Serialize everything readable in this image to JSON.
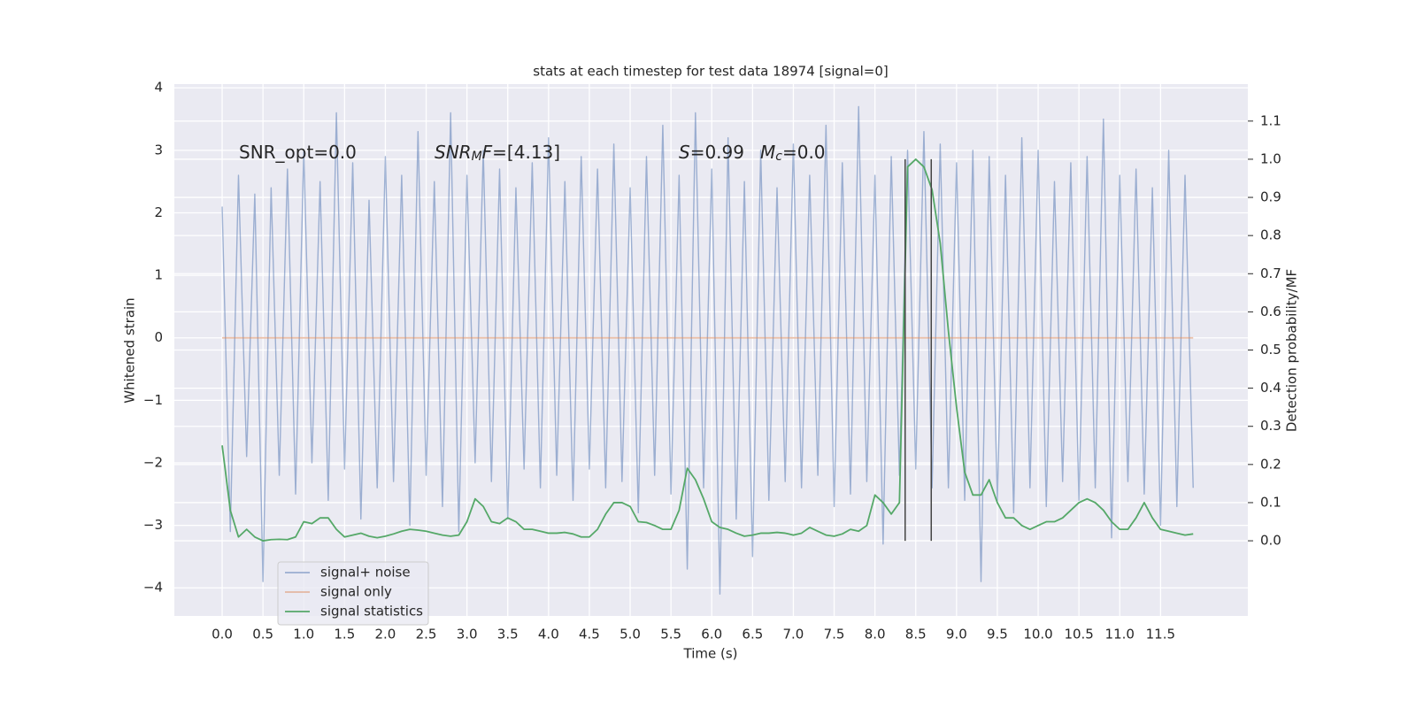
{
  "chart_data": {
    "type": "line",
    "title": "stats at each timestep for test data 18974 [signal=0]",
    "xlabel": "Time (s)",
    "ylabel": "Whitened strain",
    "y2label": "Detection probability/MF",
    "annotations": [
      [
        {
          "t": "SNR_opt=0.0"
        }
      ],
      [
        {
          "t": "SNR",
          "style": "italic"
        },
        {
          "t": "M",
          "style": "italic-sub"
        },
        {
          "t": "F",
          "style": "italic"
        },
        {
          "t": "=[4.13]"
        }
      ],
      [
        {
          "t": "S",
          "style": "italic"
        },
        {
          "t": "=0.99"
        }
      ],
      [
        {
          "t": "M",
          "style": "italic"
        },
        {
          "t": "c",
          "style": "italic-sub"
        },
        {
          "t": "=0.0"
        }
      ]
    ],
    "x": [
      0,
      0.1,
      0.2,
      0.3,
      0.4,
      0.5,
      0.6,
      0.7,
      0.8,
      0.9,
      1,
      1.1,
      1.2,
      1.3,
      1.4,
      1.5,
      1.6,
      1.7,
      1.8,
      1.9,
      2,
      2.1,
      2.2,
      2.3,
      2.4,
      2.5,
      2.6,
      2.7,
      2.8,
      2.9,
      3,
      3.1,
      3.2,
      3.3,
      3.4,
      3.5,
      3.6,
      3.7,
      3.8,
      3.9,
      4,
      4.1,
      4.2,
      4.3,
      4.4,
      4.5,
      4.6,
      4.7,
      4.8,
      4.9,
      5,
      5.1,
      5.2,
      5.3,
      5.4,
      5.5,
      5.6,
      5.7,
      5.8,
      5.9,
      6,
      6.1,
      6.2,
      6.3,
      6.4,
      6.5,
      6.6,
      6.7,
      6.8,
      6.9,
      7,
      7.1,
      7.2,
      7.3,
      7.4,
      7.5,
      7.6,
      7.7,
      7.8,
      7.9,
      8,
      8.1,
      8.2,
      8.3,
      8.4,
      8.5,
      8.6,
      8.7,
      8.8,
      8.9,
      9,
      9.1,
      9.2,
      9.3,
      9.4,
      9.5,
      9.6,
      9.7,
      9.8,
      9.9,
      10,
      10.1,
      10.2,
      10.3,
      10.4,
      10.5,
      10.6,
      10.7,
      10.8,
      10.9,
      11,
      11.1,
      11.2,
      11.3,
      11.4,
      11.5,
      11.6,
      11.7,
      11.8,
      11.9
    ],
    "series": [
      {
        "name": "signal+ noise",
        "color": "#4c72b0",
        "opacity": 0.5,
        "values": [
          2.1,
          -3.1,
          2.6,
          -1.9,
          2.3,
          -3.9,
          2.4,
          -2.2,
          2.7,
          -2.5,
          3.0,
          -2.0,
          2.5,
          -2.6,
          3.6,
          -2.1,
          2.8,
          -2.9,
          2.2,
          -2.4,
          2.9,
          -2.3,
          2.6,
          -3.0,
          3.3,
          -2.2,
          2.5,
          -2.7,
          3.6,
          -3.1,
          2.6,
          -2.0,
          3.0,
          -2.3,
          2.7,
          -2.9,
          2.4,
          -2.1,
          2.8,
          -2.4,
          3.2,
          -2.2,
          2.5,
          -2.6,
          2.9,
          -2.1,
          2.7,
          -2.4,
          3.1,
          -2.3,
          2.4,
          -2.8,
          2.9,
          -2.2,
          3.4,
          -2.5,
          2.6,
          -3.7,
          3.6,
          -2.4,
          2.7,
          -4.1,
          3.2,
          -2.9,
          2.5,
          -3.5,
          3.0,
          -2.6,
          2.4,
          -2.3,
          3.1,
          -2.4,
          2.6,
          -2.2,
          3.4,
          -2.7,
          2.8,
          -2.5,
          3.7,
          -2.3,
          2.6,
          -3.3,
          2.9,
          -2.2,
          3.0,
          -2.1,
          3.3,
          -2.4,
          3.1,
          -2.4,
          2.8,
          -2.6,
          3.0,
          -3.9,
          2.9,
          -2.6,
          2.6,
          -2.8,
          3.2,
          -2.4,
          3.0,
          -2.7,
          2.5,
          -2.3,
          2.8,
          -2.6,
          2.9,
          -2.4,
          3.5,
          -3.2,
          2.6,
          -2.3,
          2.7,
          -2.5,
          2.4,
          -3.0,
          3.0,
          -2.7,
          2.6,
          -2.4
        ]
      },
      {
        "name": "signal only",
        "color": "#dd8452",
        "opacity": 0.5,
        "values": [
          0,
          0,
          0,
          0,
          0,
          0,
          0,
          0,
          0,
          0,
          0,
          0,
          0,
          0,
          0,
          0,
          0,
          0,
          0,
          0,
          0,
          0,
          0,
          0,
          0,
          0,
          0,
          0,
          0,
          0,
          0,
          0,
          0,
          0,
          0,
          0,
          0,
          0,
          0,
          0,
          0,
          0,
          0,
          0,
          0,
          0,
          0,
          0,
          0,
          0,
          0,
          0,
          0,
          0,
          0,
          0,
          0,
          0,
          0,
          0,
          0,
          0,
          0,
          0,
          0,
          0,
          0,
          0,
          0,
          0,
          0,
          0,
          0,
          0,
          0,
          0,
          0,
          0,
          0,
          0,
          0,
          0,
          0,
          0,
          0,
          0,
          0,
          0,
          0,
          0,
          0,
          0,
          0,
          0,
          0,
          0,
          0,
          0,
          0,
          0,
          0,
          0,
          0,
          0,
          0,
          0,
          0,
          0,
          0,
          0,
          0,
          0,
          0,
          0,
          0,
          0,
          0,
          0,
          0,
          0
        ]
      },
      {
        "name": "signal statistics",
        "color": "#55a868",
        "opacity": 1,
        "axis": "y2",
        "values": [
          0.25,
          0.08,
          0.01,
          0.03,
          0.01,
          0.0,
          0.003,
          0.004,
          0.003,
          0.01,
          0.05,
          0.045,
          0.06,
          0.06,
          0.03,
          0.01,
          0.015,
          0.02,
          0.012,
          0.008,
          0.012,
          0.018,
          0.025,
          0.03,
          0.028,
          0.025,
          0.02,
          0.015,
          0.012,
          0.015,
          0.05,
          0.11,
          0.09,
          0.05,
          0.045,
          0.06,
          0.05,
          0.03,
          0.03,
          0.025,
          0.02,
          0.02,
          0.022,
          0.018,
          0.01,
          0.01,
          0.03,
          0.07,
          0.1,
          0.1,
          0.09,
          0.05,
          0.048,
          0.04,
          0.03,
          0.03,
          0.08,
          0.19,
          0.16,
          0.11,
          0.05,
          0.035,
          0.03,
          0.02,
          0.012,
          0.015,
          0.02,
          0.02,
          0.022,
          0.02,
          0.015,
          0.02,
          0.035,
          0.025,
          0.015,
          0.012,
          0.018,
          0.03,
          0.025,
          0.04,
          0.12,
          0.1,
          0.07,
          0.1,
          0.98,
          1.0,
          0.98,
          0.92,
          0.78,
          0.55,
          0.35,
          0.18,
          0.12,
          0.12,
          0.16,
          0.1,
          0.06,
          0.06,
          0.04,
          0.03,
          0.04,
          0.05,
          0.05,
          0.06,
          0.08,
          0.1,
          0.11,
          0.1,
          0.08,
          0.05,
          0.03,
          0.03,
          0.06,
          0.1,
          0.06,
          0.03,
          0.025,
          0.02,
          0.015,
          0.018
        ]
      }
    ],
    "vlines": {
      "x": [
        8.37,
        8.69
      ],
      "ymin": 0,
      "ymax": 1.0,
      "axis": "y2",
      "color": "#444"
    },
    "xlim": [
      -0.586,
      12.57
    ],
    "ylim": [
      -4.45,
      4.06
    ],
    "y2lim": [
      -0.197,
      1.197
    ],
    "xticks": [
      {
        "value": 0,
        "label": "0.0"
      },
      0.5,
      {
        "value": 1,
        "label": "1.0"
      },
      1.5,
      {
        "value": 2,
        "label": "2.0"
      },
      2.5,
      {
        "value": 3,
        "label": "3.0"
      },
      3.5,
      {
        "value": 4,
        "label": "4.0"
      },
      4.5,
      {
        "value": 5,
        "label": "5.0"
      },
      5.5,
      {
        "value": 6,
        "label": "6.0"
      },
      6.5,
      {
        "value": 7,
        "label": "7.0"
      },
      7.5,
      {
        "value": 8,
        "label": "8.0"
      },
      8.5,
      {
        "value": 9,
        "label": "9.0"
      },
      9.5,
      {
        "value": 10,
        "label": "10.0"
      },
      10.5,
      {
        "value": 11,
        "label": "11.0"
      },
      11.5
    ],
    "yticks": [
      {
        "value": -4,
        "label": "−4"
      },
      {
        "value": -3,
        "label": "−3"
      },
      {
        "value": -2,
        "label": "−2"
      },
      {
        "value": -1,
        "label": "−1"
      },
      0,
      1,
      2,
      3,
      4
    ],
    "y2ticks": [
      {
        "value": 0,
        "label": "0.0"
      },
      0.1,
      0.2,
      0.3,
      0.4,
      0.5,
      0.6,
      0.7,
      0.8,
      0.9,
      {
        "value": 1,
        "label": "1.0"
      },
      1.1
    ],
    "grid": true,
    "legend": "lower left"
  }
}
